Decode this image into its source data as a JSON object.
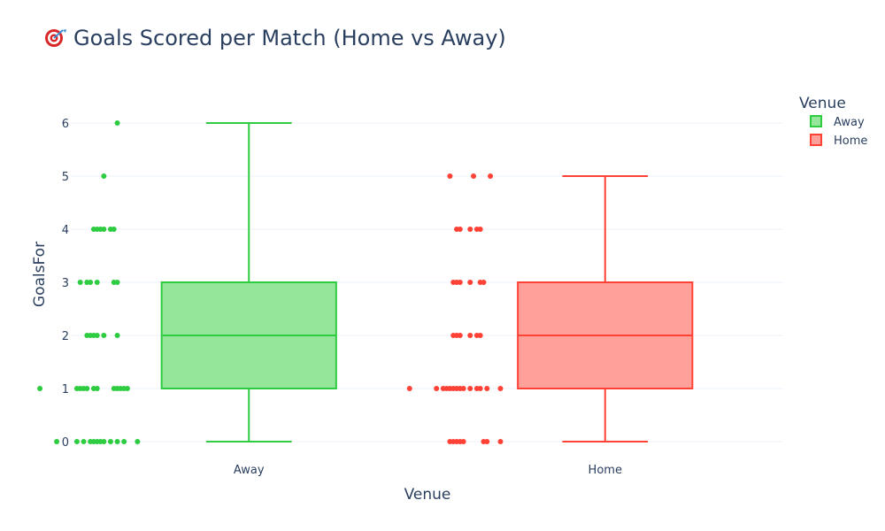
{
  "chart_data": {
    "type": "box",
    "title": "Goals Scored per Match (Home vs Away)",
    "title_icon": "target-emoji",
    "xlabel": "Venue",
    "ylabel": "GoalsFor",
    "categories": [
      "Away",
      "Home"
    ],
    "ylim": [
      -0.35,
      6.65
    ],
    "yticks": [
      0,
      1,
      2,
      3,
      4,
      5,
      6
    ],
    "grid": true,
    "legend": {
      "title": "Venue",
      "placement": "top-right",
      "entries": [
        "Away",
        "Home"
      ]
    },
    "series": [
      {
        "name": "Away",
        "color": "#2ecc40",
        "fill": "#95e59a",
        "box": {
          "min": 0,
          "q1": 1,
          "median": 2,
          "q3": 3,
          "max": 6
        },
        "points": [
          {
            "y": 0,
            "offsets": [
              -0.95,
              -0.65,
              -0.55,
              -0.45,
              -0.4,
              -0.35,
              -0.3,
              -0.25,
              -0.15,
              -0.05,
              0.05,
              0.25
            ]
          },
          {
            "y": 1,
            "offsets": [
              -1.2,
              -0.65,
              -0.6,
              -0.55,
              -0.5,
              -0.4,
              -0.35,
              -0.1,
              -0.05,
              0.0,
              0.05,
              0.1
            ]
          },
          {
            "y": 2,
            "offsets": [
              -0.5,
              -0.45,
              -0.4,
              -0.35,
              -0.25,
              -0.05
            ]
          },
          {
            "y": 3,
            "offsets": [
              -0.6,
              -0.5,
              -0.45,
              -0.35,
              -0.1,
              -0.05
            ]
          },
          {
            "y": 4,
            "offsets": [
              -0.4,
              -0.35,
              -0.3,
              -0.25,
              -0.15,
              -0.1
            ]
          },
          {
            "y": 5,
            "offsets": [
              -0.25
            ]
          },
          {
            "y": 6,
            "offsets": [
              -0.05
            ]
          }
        ]
      },
      {
        "name": "Home",
        "color": "#ff4136",
        "fill": "#ffa09b",
        "box": {
          "min": 0,
          "q1": 1,
          "median": 2,
          "q3": 3,
          "max": 5
        },
        "points": [
          {
            "y": 0,
            "offsets": [
              -0.4,
              -0.35,
              -0.3,
              -0.25,
              -0.2,
              0.1,
              0.15,
              0.35
            ]
          },
          {
            "y": 1,
            "offsets": [
              -1.0,
              -0.6,
              -0.5,
              -0.45,
              -0.4,
              -0.35,
              -0.3,
              -0.25,
              -0.2,
              -0.1,
              0.0,
              0.05,
              0.15,
              0.35
            ]
          },
          {
            "y": 2,
            "offsets": [
              -0.35,
              -0.3,
              -0.25,
              -0.1,
              0.0,
              0.05
            ]
          },
          {
            "y": 3,
            "offsets": [
              -0.35,
              -0.3,
              -0.25,
              -0.1,
              0.05,
              0.1
            ]
          },
          {
            "y": 4,
            "offsets": [
              -0.3,
              -0.25,
              -0.1,
              0.0,
              0.05
            ]
          },
          {
            "y": 5,
            "offsets": [
              -0.4,
              -0.05,
              0.2
            ]
          }
        ]
      }
    ]
  }
}
